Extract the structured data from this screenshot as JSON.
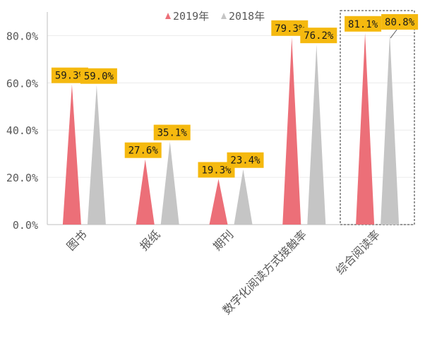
{
  "chart_data": {
    "type": "bar",
    "title": "",
    "xlabel": "",
    "ylabel": "",
    "ylim": [
      0,
      0.9
    ],
    "yticks": [
      0,
      0.2,
      0.4,
      0.6,
      0.8
    ],
    "ytick_labels": [
      "0.0%",
      "20.0%",
      "40.0%",
      "60.0%",
      "80.0%"
    ],
    "y_format": "percent",
    "bar_shape": "triangle",
    "grid": true,
    "legend_position": "top",
    "categories": [
      "图书",
      "报纸",
      "期刊",
      "数字化阅读方式接触率",
      "综合阅读率"
    ],
    "series": [
      {
        "name": "2019年",
        "color": "#ec6f78",
        "values": [
          0.593,
          0.276,
          0.193,
          0.793,
          0.811
        ],
        "labels": [
          "59.3%",
          "27.6%",
          "19.3%",
          "79.3%",
          "81.1%"
        ]
      },
      {
        "name": "2018年",
        "color": "#c5c5c5",
        "values": [
          0.59,
          0.351,
          0.234,
          0.762,
          0.808
        ],
        "labels": [
          "59.0%",
          "35.1%",
          "23.4%",
          "76.2%",
          "80.8%"
        ]
      }
    ],
    "data_label_bg": "#f5b90f",
    "highlight_category": "综合阅读率",
    "axis_color": "#bfbfbf",
    "grid_color": "#ececec",
    "text_color": "#595959"
  }
}
